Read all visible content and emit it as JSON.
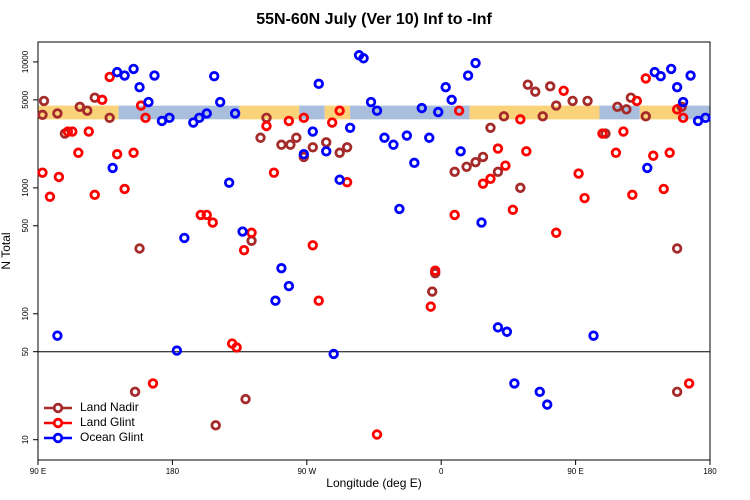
{
  "chart_data": {
    "type": "scatter",
    "title": "55N-60N July (Ver 10)   Inf to -Inf",
    "xlabel": "Longitude (deg E)",
    "ylabel": "N Total",
    "xlim": [
      90,
      540
    ],
    "xticks": [
      {
        "value": 90,
        "label": "90 E"
      },
      {
        "value": 180,
        "label": "180"
      },
      {
        "value": 270,
        "label": "90 W"
      },
      {
        "value": 360,
        "label": "0"
      },
      {
        "value": 450,
        "label": "90 E"
      },
      {
        "value": 540,
        "label": "180"
      }
    ],
    "ylim": [
      6.9,
      14400
    ],
    "yscale": "log",
    "yticks": [
      10,
      50,
      100,
      500,
      1000,
      5000,
      10000
    ],
    "reference_line": 50,
    "legend": "lower left",
    "band": {
      "ylim": [
        3500,
        4500
      ],
      "segments": [
        {
          "xlim": [
            90,
            144
          ],
          "color": "#f9d27a"
        },
        {
          "xlim": [
            144,
            225
          ],
          "color": "#a8bedc"
        },
        {
          "xlim": [
            225,
            265
          ],
          "color": "#f9d27a"
        },
        {
          "xlim": [
            265,
            282
          ],
          "color": "#a8bedc"
        },
        {
          "xlim": [
            282,
            299
          ],
          "color": "#f9d27a"
        },
        {
          "xlim": [
            299,
            379
          ],
          "color": "#a8bedc"
        },
        {
          "xlim": [
            379,
            466
          ],
          "color": "#f9d27a"
        },
        {
          "xlim": [
            466,
            493
          ],
          "color": "#a8bedc"
        },
        {
          "xlim": [
            493,
            520
          ],
          "color": "#f9d27a"
        },
        {
          "xlim": [
            520,
            540
          ],
          "color": "#a8bedc"
        }
      ]
    },
    "series": [
      {
        "name": "Land Nadir",
        "color": "#a52a2a",
        "x": [
          93,
          94,
          103,
          108,
          118,
          123,
          128,
          138,
          158,
          209,
          229,
          155,
          233,
          239,
          243,
          253,
          259,
          263,
          268,
          274,
          283,
          292,
          297,
          354,
          356,
          369,
          377,
          383,
          388,
          393,
          398,
          402,
          413,
          418,
          423,
          428,
          433,
          437,
          448,
          458,
          470,
          478,
          484,
          487,
          497,
          518,
          518,
          521
        ],
        "values": [
          3800,
          4900,
          3900,
          2700,
          4400,
          4100,
          5200,
          3600,
          330,
          13,
          21,
          24,
          380,
          2500,
          3600,
          2200,
          2200,
          2500,
          1760,
          2100,
          2300,
          1900,
          2100,
          150,
          210,
          1340,
          1470,
          1600,
          1760,
          3000,
          1340,
          3700,
          1000,
          6600,
          5800,
          3700,
          6400,
          4500,
          4900,
          4900,
          2700,
          4400,
          4200,
          5200,
          3700,
          24,
          330,
          4400
        ]
      },
      {
        "name": "Land Glint",
        "color": "#ff0000",
        "x": [
          93,
          98,
          104,
          110,
          113,
          117,
          124,
          128,
          133,
          138,
          143,
          148,
          154,
          159,
          162,
          167,
          199,
          203,
          207,
          220,
          223,
          228,
          233,
          243,
          248,
          258,
          268,
          274,
          278,
          287,
          292,
          297,
          317,
          353,
          356,
          369,
          372,
          388,
          393,
          398,
          403,
          408,
          413,
          417,
          437,
          442,
          452,
          456,
          468,
          477,
          482,
          488,
          491,
          497,
          502,
          509,
          513,
          518,
          522,
          526
        ],
        "values": [
          1320,
          850,
          1220,
          2800,
          2800,
          1900,
          2800,
          880,
          5000,
          7600,
          1850,
          980,
          1900,
          4500,
          3600,
          28,
          610,
          610,
          530,
          58,
          54,
          320,
          440,
          3100,
          1320,
          3400,
          3600,
          350,
          127,
          3300,
          4100,
          1110,
          11,
          114,
          220,
          610,
          4100,
          1080,
          1180,
          2050,
          1500,
          670,
          3500,
          1950,
          440,
          5900,
          1300,
          830,
          2700,
          1900,
          2800,
          880,
          4900,
          7400,
          1800,
          980,
          1900,
          4200,
          3600,
          28
        ]
      },
      {
        "name": "Ocean Glint",
        "color": "#0000ff",
        "x": [
          103,
          140,
          143,
          148,
          154,
          158,
          164,
          168,
          173,
          178,
          183,
          188,
          194,
          198,
          203,
          208,
          212,
          218,
          222,
          227,
          249,
          253,
          258,
          268,
          274,
          278,
          283,
          288,
          292,
          299,
          305,
          308,
          313,
          317,
          322,
          328,
          332,
          337,
          342,
          347,
          352,
          358,
          363,
          367,
          373,
          378,
          383,
          387,
          398,
          404,
          409,
          426,
          431,
          462,
          498,
          503,
          507,
          514,
          518,
          522,
          527,
          532,
          537
        ],
        "values": [
          67,
          1440,
          8300,
          7800,
          8800,
          6300,
          4800,
          7800,
          3400,
          3600,
          51,
          400,
          3300,
          3600,
          3900,
          7700,
          4800,
          1100,
          3900,
          450,
          127,
          230,
          166,
          1850,
          2800,
          6700,
          1950,
          48,
          1160,
          3000,
          11300,
          10700,
          4800,
          4100,
          2500,
          2200,
          680,
          2600,
          1580,
          4300,
          2500,
          4000,
          6300,
          5000,
          1950,
          7800,
          9800,
          530,
          78,
          72,
          28,
          24,
          19,
          67,
          1440,
          8300,
          7700,
          8800,
          6300,
          4800,
          7800,
          3400,
          3600
        ]
      }
    ]
  }
}
